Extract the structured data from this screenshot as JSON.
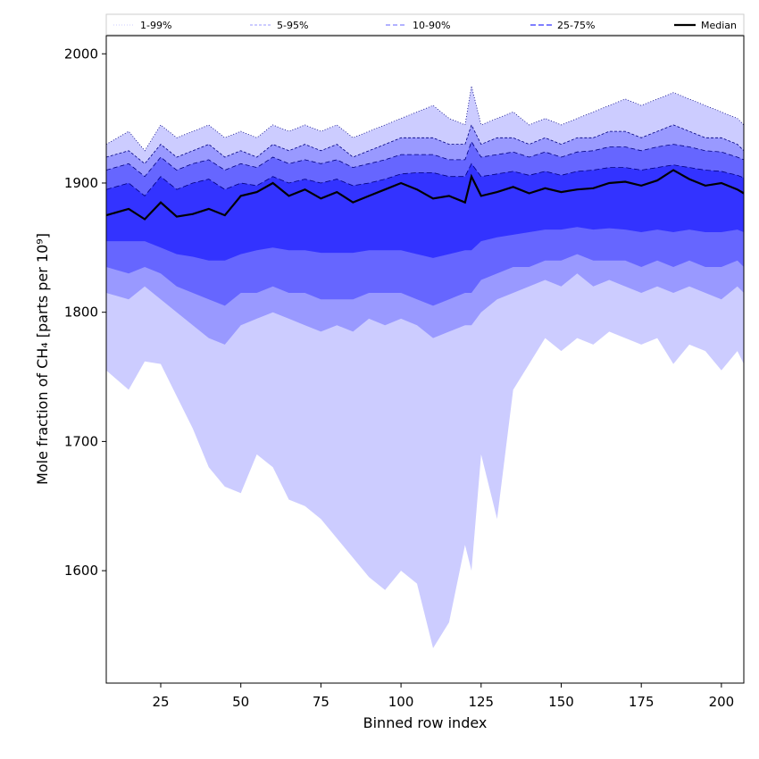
{
  "chart_data": {
    "type": "area",
    "title": "",
    "xlabel": "Binned row index",
    "ylabel": "Mole fraction of CH₄ [parts per 10⁹]",
    "xlim": [
      8,
      207
    ],
    "ylim": [
      1513,
      2014
    ],
    "x_ticks": [
      25,
      50,
      75,
      100,
      125,
      150,
      175,
      200
    ],
    "y_ticks": [
      1600,
      1700,
      1800,
      1900,
      2000
    ],
    "x_tick_labels": [
      "25",
      "50",
      "75",
      "100",
      "125",
      "150",
      "175",
      "200"
    ],
    "y_tick_labels": [
      "1600",
      "1700",
      "1800",
      "1900",
      "2000"
    ],
    "grid": false,
    "legend_position": "top",
    "legend": [
      "1-99%",
      "5-95%",
      "10-90%",
      "25-75%",
      "Median"
    ],
    "colors": {
      "band_1_99": "#ccccff",
      "band_5_95": "#9999ff",
      "band_10_90": "#6666ff",
      "band_25_75": "#3333ff",
      "median": "#000000",
      "edge": "#000080"
    },
    "x": [
      8,
      15,
      20,
      25,
      30,
      35,
      40,
      45,
      50,
      55,
      60,
      65,
      70,
      75,
      80,
      85,
      90,
      95,
      100,
      105,
      110,
      115,
      120,
      122,
      125,
      130,
      135,
      140,
      145,
      150,
      155,
      160,
      165,
      170,
      175,
      180,
      185,
      190,
      195,
      200,
      205,
      207
    ],
    "series": [
      {
        "name": "1-99%",
        "lower": [
          1755,
          1740,
          1762,
          1760,
          1735,
          1710,
          1680,
          1665,
          1660,
          1690,
          1680,
          1655,
          1650,
          1640,
          1625,
          1610,
          1595,
          1585,
          1600,
          1590,
          1540,
          1560,
          1620,
          1600,
          1690,
          1640,
          1740,
          1760,
          1780,
          1770,
          1780,
          1775,
          1785,
          1780,
          1775,
          1780,
          1760,
          1775,
          1770,
          1755,
          1770,
          1760
        ],
        "upper": [
          1930,
          1940,
          1925,
          1945,
          1935,
          1940,
          1945,
          1935,
          1940,
          1935,
          1945,
          1940,
          1945,
          1940,
          1945,
          1935,
          1940,
          1945,
          1950,
          1955,
          1960,
          1950,
          1945,
          1975,
          1945,
          1950,
          1955,
          1945,
          1950,
          1945,
          1950,
          1955,
          1960,
          1965,
          1960,
          1965,
          1970,
          1965,
          1960,
          1955,
          1950,
          1945
        ]
      },
      {
        "name": "5-95%",
        "lower": [
          1815,
          1810,
          1820,
          1810,
          1800,
          1790,
          1780,
          1775,
          1790,
          1795,
          1800,
          1795,
          1790,
          1785,
          1790,
          1785,
          1795,
          1790,
          1795,
          1790,
          1780,
          1785,
          1790,
          1790,
          1800,
          1810,
          1815,
          1820,
          1825,
          1820,
          1830,
          1820,
          1825,
          1820,
          1815,
          1820,
          1815,
          1820,
          1815,
          1810,
          1820,
          1815
        ],
        "upper": [
          1920,
          1925,
          1915,
          1930,
          1920,
          1925,
          1930,
          1920,
          1925,
          1920,
          1930,
          1925,
          1930,
          1925,
          1930,
          1920,
          1925,
          1930,
          1935,
          1935,
          1935,
          1930,
          1930,
          1945,
          1930,
          1935,
          1935,
          1930,
          1935,
          1930,
          1935,
          1935,
          1940,
          1940,
          1935,
          1940,
          1945,
          1940,
          1935,
          1935,
          1930,
          1925
        ]
      },
      {
        "name": "10-90%",
        "lower": [
          1835,
          1830,
          1835,
          1830,
          1820,
          1815,
          1810,
          1805,
          1815,
          1815,
          1820,
          1815,
          1815,
          1810,
          1810,
          1810,
          1815,
          1815,
          1815,
          1810,
          1805,
          1810,
          1815,
          1815,
          1825,
          1830,
          1835,
          1835,
          1840,
          1840,
          1845,
          1840,
          1840,
          1840,
          1835,
          1840,
          1835,
          1840,
          1835,
          1835,
          1840,
          1835
        ],
        "upper": [
          1910,
          1915,
          1905,
          1920,
          1910,
          1915,
          1918,
          1910,
          1915,
          1912,
          1920,
          1915,
          1918,
          1915,
          1918,
          1912,
          1915,
          1918,
          1922,
          1922,
          1922,
          1918,
          1918,
          1932,
          1920,
          1922,
          1924,
          1920,
          1924,
          1920,
          1924,
          1925,
          1928,
          1928,
          1925,
          1928,
          1930,
          1928,
          1925,
          1924,
          1920,
          1918
        ]
      },
      {
        "name": "25-75%",
        "lower": [
          1855,
          1855,
          1855,
          1850,
          1845,
          1843,
          1840,
          1840,
          1845,
          1848,
          1850,
          1848,
          1848,
          1846,
          1846,
          1846,
          1848,
          1848,
          1848,
          1845,
          1842,
          1845,
          1848,
          1848,
          1855,
          1858,
          1860,
          1862,
          1864,
          1864,
          1866,
          1864,
          1865,
          1864,
          1862,
          1864,
          1862,
          1864,
          1862,
          1862,
          1864,
          1862
        ],
        "upper": [
          1895,
          1900,
          1890,
          1905,
          1895,
          1900,
          1903,
          1895,
          1900,
          1898,
          1905,
          1900,
          1903,
          1900,
          1903,
          1898,
          1900,
          1903,
          1907,
          1908,
          1908,
          1905,
          1905,
          1915,
          1905,
          1907,
          1909,
          1906,
          1909,
          1906,
          1909,
          1910,
          1912,
          1912,
          1910,
          1912,
          1914,
          1912,
          1910,
          1909,
          1906,
          1904
        ]
      },
      {
        "name": "Median",
        "values": [
          1875,
          1880,
          1872,
          1885,
          1874,
          1876,
          1880,
          1875,
          1890,
          1893,
          1900,
          1890,
          1895,
          1888,
          1893,
          1885,
          1890,
          1895,
          1900,
          1895,
          1888,
          1890,
          1885,
          1905,
          1890,
          1893,
          1897,
          1892,
          1896,
          1893,
          1895,
          1896,
          1900,
          1901,
          1898,
          1902,
          1910,
          1903,
          1898,
          1900,
          1895,
          1892
        ]
      }
    ]
  }
}
